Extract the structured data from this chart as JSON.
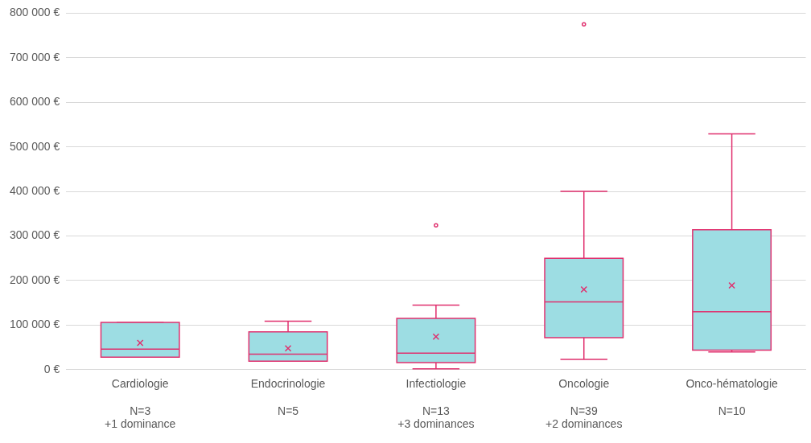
{
  "chart_data": {
    "type": "box",
    "categories": [
      "Cardiologie\n\nN=3\n+1 dominance",
      "Endocrinologie\n\nN=5",
      "Infectiologie\n\nN=13\n+3 dominances",
      "Oncologie\n\nN=39\n+2 dominances",
      "Onco-hématologie\n\nN=10"
    ],
    "series": [
      {
        "color": "#9ddde3",
        "boxes": [
          {
            "low": 28000,
            "q1": 28000,
            "median": 46000,
            "q3": 106000,
            "high": 106000,
            "mean": 60000
          },
          {
            "low": 19000,
            "q1": 19000,
            "median": 35000,
            "q3": 85000,
            "high": 109000,
            "mean": 48000
          },
          {
            "low": 2000,
            "q1": 16000,
            "median": 37000,
            "q3": 115000,
            "high": 145000,
            "mean": 74000,
            "outliers": [
              324000
            ]
          },
          {
            "low": 23000,
            "q1": 72000,
            "median": 152000,
            "q3": 250000,
            "high": 400000,
            "mean": 180000,
            "outliers": [
              775000
            ]
          },
          {
            "low": 40000,
            "q1": 44000,
            "median": 130000,
            "q3": 314000,
            "high": 529000,
            "mean": 189000
          }
        ]
      }
    ],
    "ylim": [
      0,
      800000
    ],
    "yticks": [
      {
        "value": 0,
        "label": "0 €"
      },
      {
        "value": 100000,
        "label": "100 000 €"
      },
      {
        "value": 200000,
        "label": "200 000 €"
      },
      {
        "value": 300000,
        "label": "300 000 €"
      },
      {
        "value": 400000,
        "label": "400 000 €"
      },
      {
        "value": 500000,
        "label": "500 000 €"
      },
      {
        "value": 600000,
        "label": "600 000 €"
      },
      {
        "value": 700000,
        "label": "700 000 €"
      },
      {
        "value": 800000,
        "label": "800 000 €"
      }
    ],
    "grid": "y",
    "legend": false
  }
}
